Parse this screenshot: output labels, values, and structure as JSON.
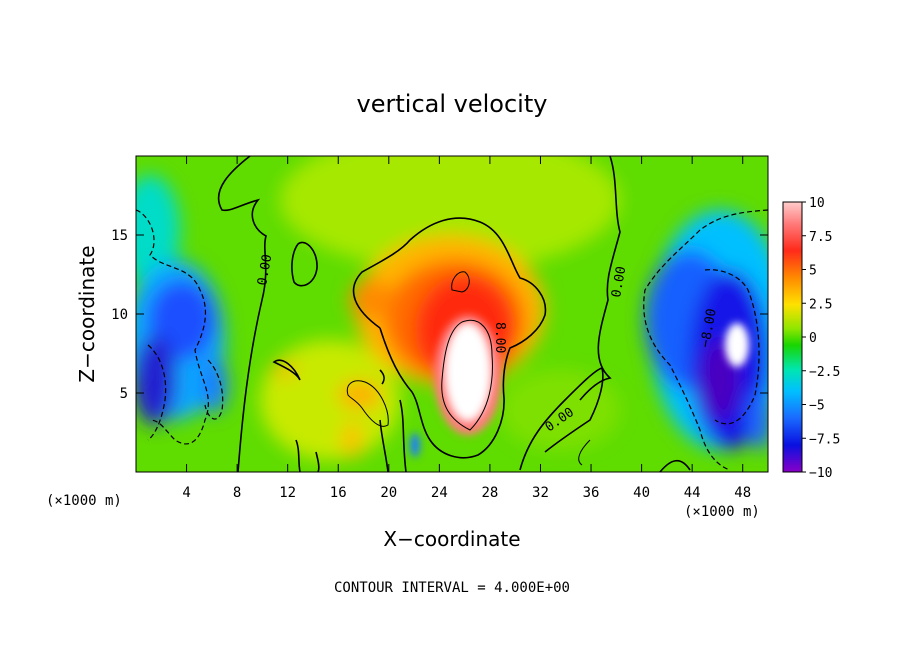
{
  "chart_data": {
    "type": "heatmap",
    "title": "vertical velocity",
    "xlabel": "X−coordinate",
    "ylabel": "Z−coordinate",
    "x_unit_left": "(×1000 m)",
    "x_unit_right": "(×1000 m)",
    "footer": "CONTOUR INTERVAL = 4.000E+00",
    "xlim": [
      0,
      50
    ],
    "ylim": [
      0,
      20
    ],
    "x_ticks": [
      4,
      8,
      12,
      16,
      20,
      24,
      28,
      32,
      36,
      40,
      44,
      48
    ],
    "y_ticks": [
      5,
      10,
      15
    ],
    "colorbar": {
      "min": -10,
      "max": 10,
      "ticks": [
        10,
        7.5,
        5,
        2.5,
        0,
        -2.5,
        -5,
        -7.5,
        -10
      ],
      "tick_labels": [
        "10",
        "7.5",
        "5",
        "2.5",
        "0",
        "−2.5",
        "−5",
        "−7.5",
        "−10"
      ],
      "colors": [
        "#ff9ea0",
        "#ff3a2a",
        "#ff6a00",
        "#ffe100",
        "#30e000",
        "#00e6c8",
        "#1a7eff",
        "#1a1aff",
        "#7a00b8"
      ]
    },
    "contour_labels": [
      "0.00",
      "8.00",
      "0.00",
      "0.00",
      "−8.00"
    ],
    "features": [
      {
        "name": "updraft",
        "x": 26.5,
        "z": 7,
        "max": 10
      },
      {
        "name": "left-downdraft",
        "x": 2.5,
        "z": 7,
        "min": -9
      },
      {
        "name": "right-downdraft",
        "x": 46.5,
        "z": 8,
        "min": -10
      },
      {
        "name": "left-weak-downdraft",
        "x": 5,
        "z": 12,
        "min": -6
      },
      {
        "name": "right-weak-downdraft",
        "x": 42,
        "z": 10,
        "min": -7
      }
    ]
  }
}
